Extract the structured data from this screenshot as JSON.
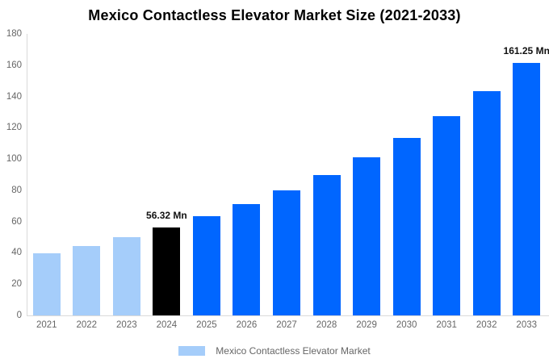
{
  "chart": {
    "title": "Mexico Contactless Elevator Market Size (2021-2033)"
  },
  "legend": {
    "label": "Mexico Contactless Elevator Market",
    "swatch_color": "#A5CDFA"
  },
  "colors": {
    "historical_bar": "#A5CDFA",
    "base_year_bar": "#000000",
    "forecast_bar": "#0066FF",
    "axis_line": "#D9D9D9",
    "tick_text": "#666666",
    "title_text": "#000000",
    "annotation_text": "#111111",
    "legend_text": "#666666"
  },
  "chart_data": {
    "type": "bar",
    "title": "Mexico Contactless Elevator Market Size (2021-2033)",
    "xlabel": "",
    "ylabel": "",
    "ylim": [
      0,
      180
    ],
    "yticks": [
      0,
      20,
      40,
      60,
      80,
      100,
      120,
      140,
      160,
      180
    ],
    "grid": false,
    "legend_position": "bottom",
    "series_name": "Mexico Contactless Elevator Market",
    "categories": [
      "2021",
      "2022",
      "2023",
      "2024",
      "2025",
      "2026",
      "2027",
      "2028",
      "2029",
      "2030",
      "2031",
      "2032",
      "2033"
    ],
    "values": [
      39.7,
      44.6,
      50.1,
      56.32,
      63.3,
      71.1,
      80.0,
      89.9,
      101.0,
      113.6,
      127.6,
      143.5,
      161.25
    ],
    "bar_colors": [
      "#A5CDFA",
      "#A5CDFA",
      "#A5CDFA",
      "#000000",
      "#0066FF",
      "#0066FF",
      "#0066FF",
      "#0066FF",
      "#0066FF",
      "#0066FF",
      "#0066FF",
      "#0066FF",
      "#0066FF"
    ],
    "annotations": [
      {
        "category": "2024",
        "text": "56.32 Mn"
      },
      {
        "category": "2033",
        "text": "161.25 Mn"
      }
    ]
  }
}
